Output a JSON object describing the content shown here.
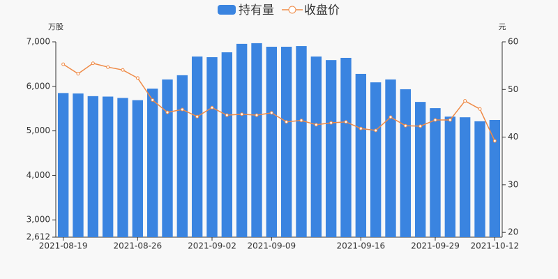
{
  "chart_data": {
    "type": "bar",
    "y_unit": "万股",
    "y2_unit": "元",
    "categories": [
      "2021-08-19",
      null,
      null,
      null,
      null,
      "2021-08-26",
      null,
      null,
      null,
      null,
      "2021-09-02",
      null,
      null,
      null,
      "2021-09-09",
      null,
      null,
      null,
      null,
      null,
      "2021-09-16",
      null,
      null,
      null,
      null,
      "2021-09-29",
      null,
      null,
      null,
      "2021-10-12"
    ],
    "series": [
      {
        "name": "持有量",
        "type": "bar",
        "color": "#3a84e0",
        "values": [
          5850,
          5840,
          5780,
          5770,
          5740,
          5690,
          5950,
          6155,
          6250,
          6670,
          6655,
          6765,
          6955,
          6970,
          6890,
          6890,
          6905,
          6670,
          6590,
          6640,
          6280,
          6090,
          6155,
          5935,
          5650,
          5510,
          5320,
          5305,
          5215,
          5245
        ]
      },
      {
        "name": "收盘价",
        "type": "line",
        "axis": "y2",
        "color": "#ef8a46",
        "values": [
          55.3,
          53.3,
          55.5,
          54.7,
          54.1,
          52.4,
          47.8,
          45.2,
          45.8,
          44.3,
          46.2,
          44.6,
          44.8,
          44.6,
          45.1,
          43.2,
          43.5,
          42.6,
          43.0,
          43.2,
          41.8,
          41.4,
          44.2,
          42.4,
          42.3,
          43.6,
          43.6,
          47.6,
          45.9,
          39.2
        ]
      }
    ],
    "ylim": [
      2612,
      7000
    ],
    "yticks": [
      {
        "value": 2612,
        "label": "2,612"
      },
      {
        "value": 3000,
        "label": "3,000"
      },
      {
        "value": 4000,
        "label": "4,000"
      },
      {
        "value": 5000,
        "label": "5,000"
      },
      {
        "value": 6000,
        "label": "6,000"
      },
      {
        "value": 7000,
        "label": "7,000"
      }
    ],
    "y2lim": [
      19,
      60
    ],
    "y2ticks": [
      20,
      30,
      40,
      50,
      60
    ],
    "legend": "top"
  }
}
